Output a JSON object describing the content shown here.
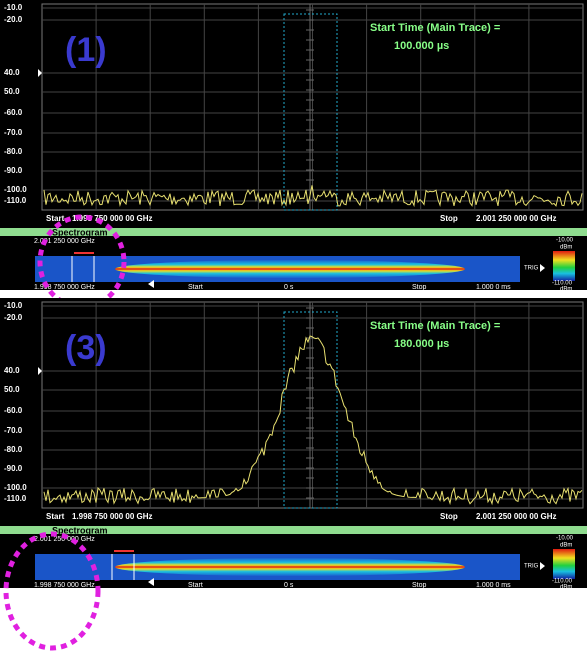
{
  "panels": [
    {
      "label": "(1)",
      "y_labels": [
        "-10.0",
        "-20.0",
        "40.0",
        "50.0",
        "-60.0",
        "-70.0",
        "-80.0",
        "-90.0",
        "-100.0",
        "-110.0"
      ],
      "annotation_title": "Start Time (Main Trace) =",
      "annotation_value": "100.000 µs",
      "start_label": "Start",
      "start_freq": "1.998 750 000 00 GHz",
      "stop_label": "Stop",
      "stop_freq": "2.001 250 000 00 GHz",
      "spectrogram": {
        "title": "Spectrogram",
        "top_freq": "2.001 250 000 GHz",
        "bottom_freq": "1.998 750 000 GHz",
        "start": "Start",
        "mid": "0 s",
        "stop": "Stop",
        "end": "1.000 0 ms",
        "scale_top": "-10.00",
        "scale_bottom": "-110.00",
        "unit": "dBm",
        "trig": "TRIG"
      }
    },
    {
      "label": "(3)",
      "y_labels": [
        "-10.0",
        "-20.0",
        "40.0",
        "50.0",
        "-60.0",
        "-70.0",
        "-80.0",
        "-90.0",
        "-100.0",
        "-110.0"
      ],
      "annotation_title": "Start Time (Main Trace) =",
      "annotation_value": "180.000 µs",
      "start_label": "Start",
      "start_freq": "1.998 750 000 00 GHz",
      "stop_label": "Stop",
      "stop_freq": "2.001 250 000 00 GHz",
      "spectrogram": {
        "title": "Spectrogram",
        "top_freq": "2.001 250 000 GHz",
        "bottom_freq": "1.998 750 000 GHz",
        "start": "Start",
        "mid": "0 s",
        "stop": "Stop",
        "end": "1.000 0 ms",
        "scale_top": "-10.00",
        "scale_bottom": "-110.00",
        "unit": "dBm",
        "trig": "TRIG"
      }
    }
  ]
}
